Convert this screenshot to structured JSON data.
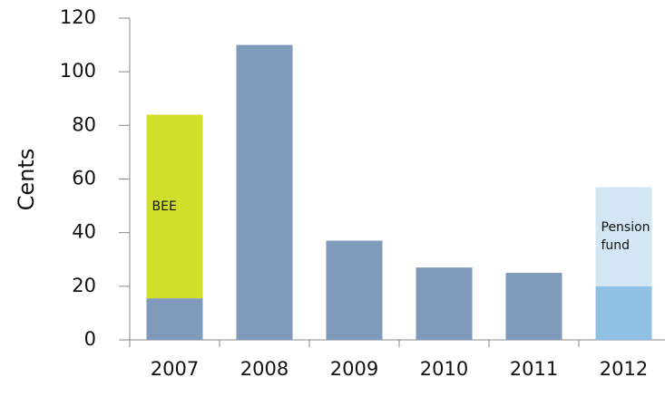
{
  "chart_data": {
    "type": "stacked_bar",
    "y_label": "Cents",
    "categories": [
      "2007",
      "2008",
      "2009",
      "2010",
      "2011",
      "2012"
    ],
    "series": [
      {
        "colors": [
          "#7f9aba",
          "#7f9aba",
          "#7f9aba",
          "#7f9aba",
          "#7f9aba",
          "#8fc1e2"
        ],
        "values": [
          15.5,
          110,
          37,
          27,
          25,
          20
        ]
      },
      {
        "name": "BEE",
        "color": "#d0df2b",
        "values": [
          68.5,
          null,
          null,
          null,
          null,
          null
        ]
      },
      {
        "name": "Pension fund",
        "color": "#d2e6f3",
        "values": [
          null,
          null,
          null,
          null,
          null,
          37
        ]
      }
    ],
    "ylim": [
      0,
      120
    ],
    "yticks": [
      0,
      20,
      40,
      60,
      80,
      100,
      120
    ],
    "grid": false
  }
}
